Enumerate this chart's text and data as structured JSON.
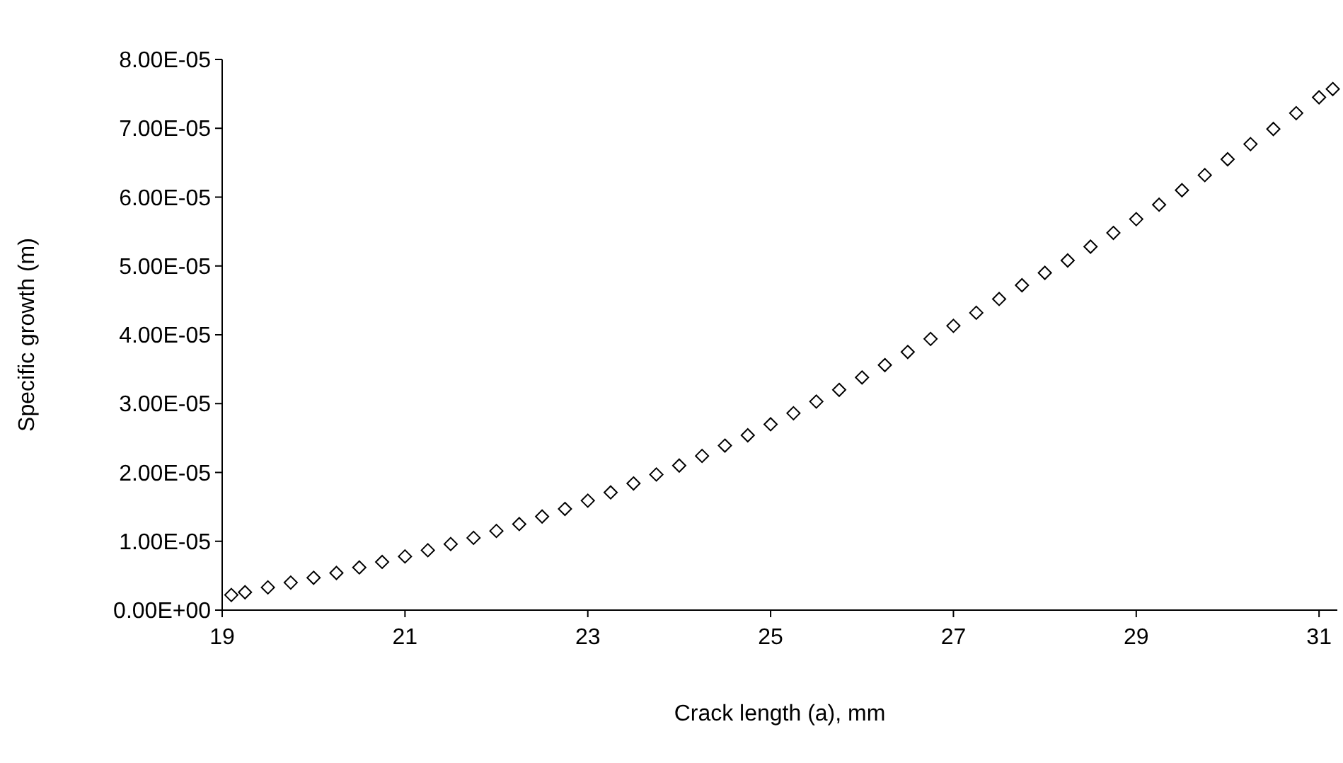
{
  "chart_data": {
    "type": "scatter",
    "xlabel": "Crack length $_{}$(a), mm",
    "ylabel": "Specific growth (m)",
    "marker": "diamond",
    "grid": false,
    "xlim": [
      19,
      31.2
    ],
    "xticks": [
      19,
      21,
      23,
      25,
      27,
      29,
      31
    ],
    "ylim": [
      0,
      8e-05
    ],
    "yticks": [
      {
        "value": 0,
        "label": "0.00E+00"
      },
      {
        "value": 1e-05,
        "label": "1.00E-05"
      },
      {
        "value": 2e-05,
        "label": "2.00E-05"
      },
      {
        "value": 3e-05,
        "label": "3.00E-05"
      },
      {
        "value": 4e-05,
        "label": "4.00E-05"
      },
      {
        "value": 5e-05,
        "label": "5.00E-05"
      },
      {
        "value": 6e-05,
        "label": "6.00E-05"
      },
      {
        "value": 7e-05,
        "label": "7.00E-05"
      },
      {
        "value": 8e-05,
        "label": "8.00E-05"
      }
    ],
    "series": [
      {
        "color": "#000000",
        "x": [
          19.1,
          19.25,
          19.5,
          19.75,
          20,
          20.25,
          20.5,
          20.75,
          21,
          21.25,
          21.5,
          21.75,
          22,
          22.25,
          22.5,
          22.75,
          23,
          23.25,
          23.5,
          23.75,
          24,
          24.25,
          24.5,
          24.75,
          25,
          25.25,
          25.5,
          25.75,
          26,
          26.25,
          26.5,
          26.75,
          27,
          27.25,
          27.5,
          27.75,
          28,
          28.25,
          28.5,
          28.75,
          29,
          29.25,
          29.5,
          29.75,
          30,
          30.25,
          30.5,
          30.75,
          31,
          31.15
        ],
        "values": [
          2.2e-06,
          2.6e-06,
          3.3e-06,
          4e-06,
          4.7e-06,
          5.4e-06,
          6.2e-06,
          7e-06,
          7.8e-06,
          8.7e-06,
          9.6e-06,
          1.05e-05,
          1.15e-05,
          1.25e-05,
          1.36e-05,
          1.47e-05,
          1.59e-05,
          1.71e-05,
          1.84e-05,
          1.97e-05,
          2.1e-05,
          2.24e-05,
          2.39e-05,
          2.54e-05,
          2.7e-05,
          2.86e-05,
          3.03e-05,
          3.2e-05,
          3.38e-05,
          3.56e-05,
          3.75e-05,
          3.94e-05,
          4.13e-05,
          4.32e-05,
          4.52e-05,
          4.72e-05,
          4.9e-05,
          5.08e-05,
          5.28e-05,
          5.48e-05,
          5.68e-05,
          5.89e-05,
          6.1e-05,
          6.32e-05,
          6.55e-05,
          6.77e-05,
          6.99e-05,
          7.22e-05,
          7.45e-05,
          7.57e-05
        ]
      }
    ]
  }
}
